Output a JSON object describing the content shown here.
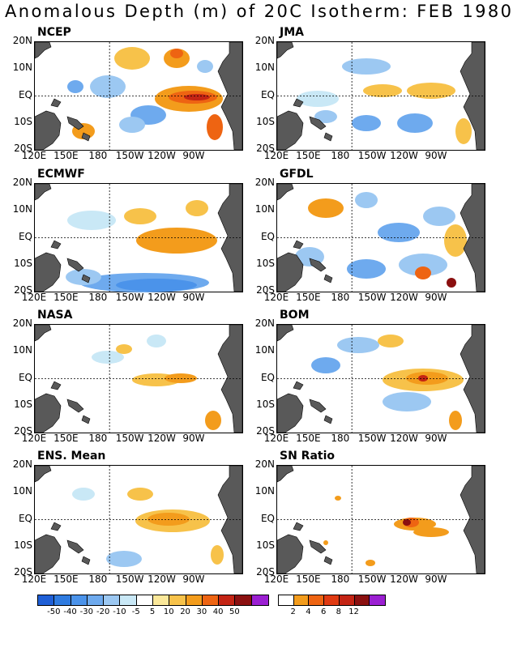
{
  "title": "Anomalous Depth (m) of 20C Isotherm: FEB 1980",
  "lat_labels": [
    "20N",
    "10N",
    "EQ",
    "10S",
    "20S"
  ],
  "lon_labels": [
    "120E",
    "150E",
    "180",
    "150W",
    "120W",
    "90W"
  ],
  "panels": [
    {
      "id": "ncep",
      "title": "NCEP"
    },
    {
      "id": "jma",
      "title": "JMA"
    },
    {
      "id": "ecmwf",
      "title": "ECMWF"
    },
    {
      "id": "gfdl",
      "title": "GFDL"
    },
    {
      "id": "nasa",
      "title": "NASA"
    },
    {
      "id": "bom",
      "title": "BOM"
    },
    {
      "id": "ens",
      "title": "ENS. Mean"
    },
    {
      "id": "sn",
      "title": "SN Ratio"
    }
  ],
  "colors": {
    "land": "#595959",
    "c_m50": "#1f5fd6",
    "c_m40": "#2f7be0",
    "c_m30": "#4b93ea",
    "c_m20": "#6eaaee",
    "c_m10": "#9cc8f2",
    "c_m5": "#c9e8f6",
    "c_5": "#fbe89a",
    "c_10": "#f7c24a",
    "c_20": "#f39c1c",
    "c_30": "#ee6412",
    "c_40": "#c42414",
    "c_50": "#8b1010",
    "c_max": "#9b1fd2"
  },
  "anomaly_colorbar": {
    "labels": [
      "-50",
      "-40",
      "-30",
      "-20",
      "-10",
      "-5",
      "5",
      "10",
      "20",
      "30",
      "40",
      "50"
    ],
    "colors": [
      "#1f5fd6",
      "#2f7be0",
      "#4b93ea",
      "#6eaaee",
      "#9cc8f2",
      "#c9e8f6",
      "#ffffff",
      "#fbe89a",
      "#f7c24a",
      "#f39c1c",
      "#ee6412",
      "#c42414",
      "#8b1010",
      "#9b1fd2"
    ]
  },
  "sn_colorbar": {
    "labels": [
      "2",
      "4",
      "6",
      "8",
      "12"
    ],
    "colors": [
      "#ffffff",
      "#f39c1c",
      "#ee6412",
      "#e03a12",
      "#c42414",
      "#8b1010",
      "#9b1fd2"
    ]
  }
}
